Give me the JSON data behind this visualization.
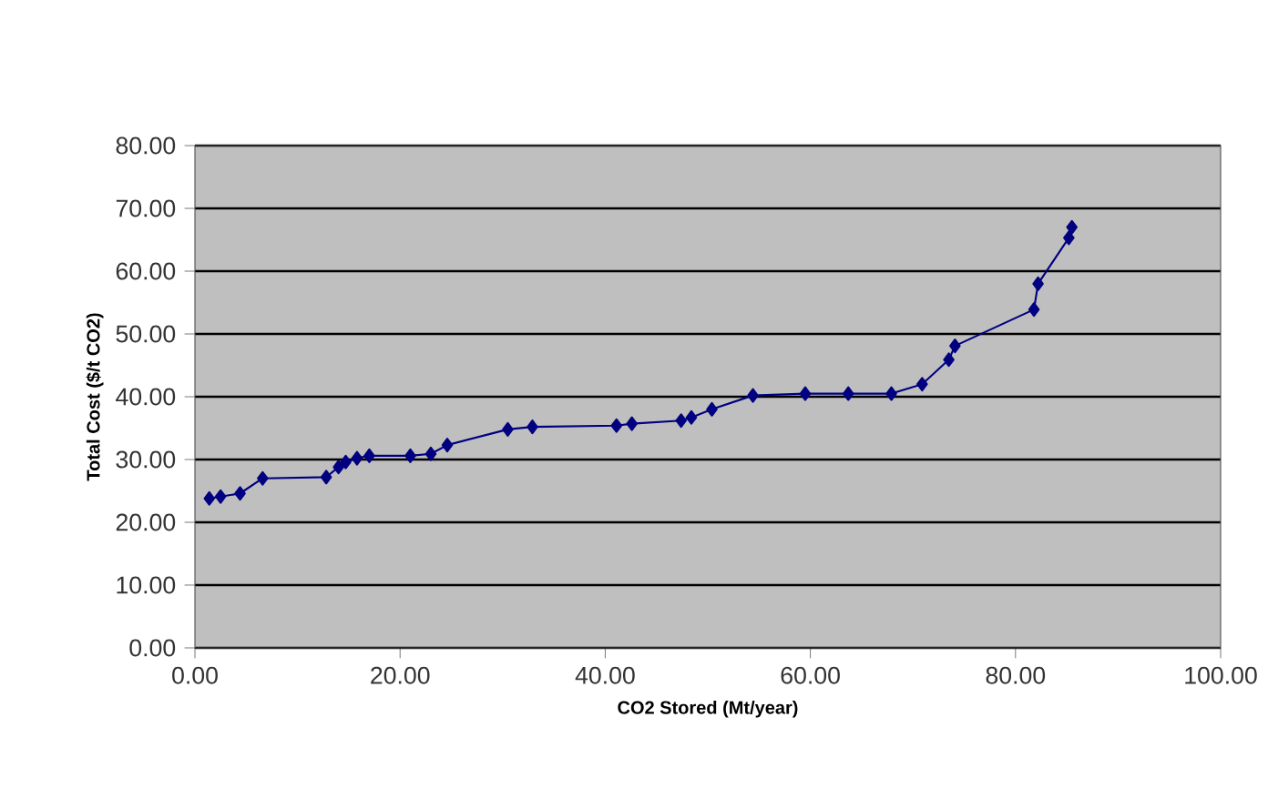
{
  "chart_data": {
    "type": "line",
    "xlabel": "CO2 Stored (Mt/year)",
    "ylabel": "Total Cost ($/t CO2)",
    "x": [
      1.4,
      2.5,
      4.4,
      6.6,
      12.8,
      14.0,
      14.7,
      15.8,
      17.0,
      21.0,
      23.0,
      24.6,
      30.5,
      32.9,
      41.1,
      42.6,
      47.4,
      48.4,
      50.4,
      54.4,
      59.5,
      63.7,
      67.9,
      70.9,
      73.5,
      74.1,
      81.8,
      82.2,
      85.2,
      85.5
    ],
    "series": [
      {
        "color": "#000080",
        "values": [
          23.8,
          24.1,
          24.6,
          27.0,
          27.2,
          28.8,
          29.6,
          30.2,
          30.6,
          30.6,
          30.9,
          32.3,
          34.8,
          35.2,
          35.4,
          35.7,
          36.2,
          36.7,
          38.0,
          40.2,
          40.5,
          40.5,
          40.5,
          42.0,
          45.9,
          48.1,
          53.9,
          58.0,
          65.3,
          67.0
        ]
      }
    ],
    "xlim": [
      0,
      100
    ],
    "ylim": [
      0,
      80
    ],
    "xticks": [
      {
        "value": 0,
        "label": "0.00"
      },
      {
        "value": 20,
        "label": "20.00"
      },
      {
        "value": 40,
        "label": "40.00"
      },
      {
        "value": 60,
        "label": "60.00"
      },
      {
        "value": 80,
        "label": "80.00"
      },
      {
        "value": 100,
        "label": "100.00"
      }
    ],
    "yticks": [
      {
        "value": 0,
        "label": "0.00"
      },
      {
        "value": 10,
        "label": "10.00"
      },
      {
        "value": 20,
        "label": "20.00"
      },
      {
        "value": 30,
        "label": "30.00"
      },
      {
        "value": 40,
        "label": "40.00"
      },
      {
        "value": 50,
        "label": "50.00"
      },
      {
        "value": 60,
        "label": "60.00"
      },
      {
        "value": 70,
        "label": "70.00"
      },
      {
        "value": 80,
        "label": "80.00"
      }
    ],
    "grid": "y",
    "marker": "diamond",
    "line_style": "solid"
  }
}
